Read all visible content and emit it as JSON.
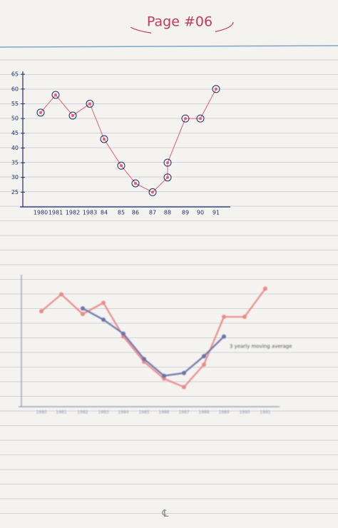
{
  "page_title": "Page #06",
  "chart_data": [
    {
      "type": "line",
      "categories": [
        "1980",
        "1981",
        "1982",
        "1983",
        "84",
        "85",
        "86",
        "87",
        "88",
        null,
        "89",
        "90",
        "91"
      ],
      "series": [
        {
          "color": "#e0607a",
          "values": [
            52,
            58,
            51,
            55,
            43,
            34,
            28,
            25,
            30,
            35,
            50,
            50,
            60
          ]
        }
      ],
      "ylim": [
        20,
        66
      ],
      "yticks": [
        25,
        30,
        35,
        40,
        45,
        50,
        55,
        60,
        65
      ]
    },
    {
      "type": "line",
      "categories": [
        "1980",
        "1981",
        "1982",
        "1983",
        "1984",
        "1985",
        "1986",
        "1987",
        "1988",
        "1989",
        "1990",
        "1991"
      ],
      "series": [
        {
          "color": "#e88a8a",
          "values": [
            52,
            58,
            51,
            55,
            43,
            34,
            28,
            25,
            33,
            50,
            50,
            60
          ]
        },
        {
          "name": "3 yearly moving average",
          "color": "#6a72a8",
          "values": [
            null,
            null,
            53,
            49,
            44,
            35,
            29,
            30,
            36,
            43,
            null,
            null
          ]
        }
      ],
      "ylim": [
        18,
        65
      ]
    }
  ]
}
